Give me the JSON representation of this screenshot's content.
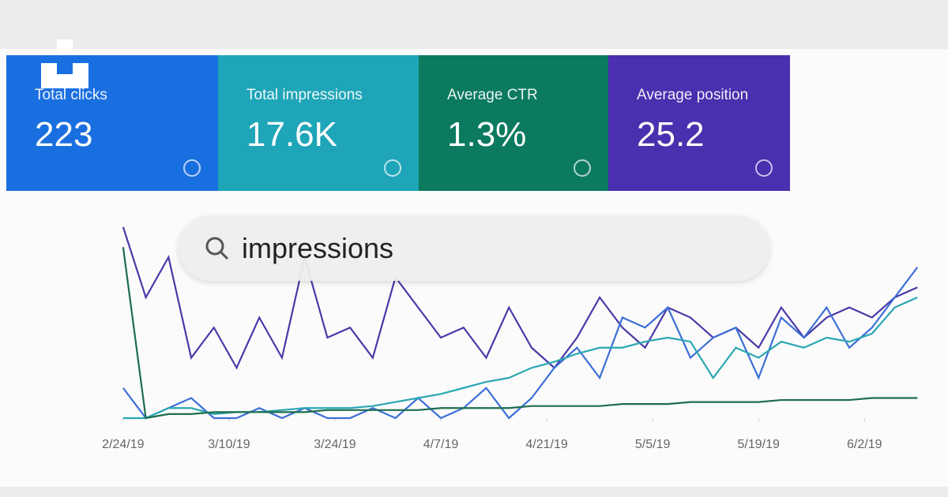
{
  "cards": [
    {
      "title": "Total clicks",
      "value": "223",
      "color": "#1a6fe0"
    },
    {
      "title": "Total impressions",
      "value": "17.6K",
      "color": "#1ea5b8"
    },
    {
      "title": "Average CTR",
      "value": "1.3%",
      "color": "#0b7a5e"
    },
    {
      "title": "Average position",
      "value": "25.2",
      "color": "#4a2fae"
    }
  ],
  "search": {
    "query": "impressions"
  },
  "chart_data": {
    "type": "line",
    "x": [
      0,
      3,
      6,
      9,
      12,
      15,
      18,
      21,
      24,
      27,
      30,
      33,
      36,
      39,
      42,
      45,
      48,
      51,
      54,
      57,
      60,
      63,
      66,
      69,
      72,
      75,
      78,
      81,
      84,
      87,
      90,
      93,
      96,
      99,
      102,
      105
    ],
    "xlim": [
      -5,
      108
    ],
    "xticks": [
      {
        "value": 0,
        "label": "2/24/19"
      },
      {
        "value": 14,
        "label": "3/10/19"
      },
      {
        "value": 28,
        "label": "3/24/19"
      },
      {
        "value": 42,
        "label": "4/7/19"
      },
      {
        "value": 56,
        "label": "4/21/19"
      },
      {
        "value": 70,
        "label": "5/5/19"
      },
      {
        "value": 84,
        "label": "5/19/19"
      },
      {
        "value": 98,
        "label": "6/2/19"
      }
    ],
    "ylim": [
      0,
      100
    ],
    "series": [
      {
        "name": "Average position",
        "color": "#4a3aa8",
        "values": [
          95,
          60,
          80,
          30,
          45,
          25,
          50,
          30,
          80,
          40,
          45,
          30,
          70,
          55,
          40,
          45,
          30,
          55,
          35,
          25,
          40,
          60,
          45,
          35,
          55,
          50,
          40,
          45,
          35,
          55,
          40,
          50,
          55,
          50,
          60,
          65
        ]
      },
      {
        "name": "Total clicks",
        "color": "#3c6fd6",
        "values": [
          15,
          0,
          5,
          10,
          0,
          0,
          5,
          0,
          5,
          0,
          0,
          5,
          0,
          10,
          0,
          5,
          15,
          0,
          10,
          25,
          35,
          20,
          50,
          45,
          55,
          30,
          40,
          45,
          20,
          50,
          40,
          55,
          35,
          45,
          60,
          75
        ]
      },
      {
        "name": "Total impressions",
        "color": "#2aa7b2",
        "values": [
          0,
          0,
          5,
          5,
          2,
          3,
          3,
          4,
          5,
          5,
          5,
          6,
          8,
          10,
          12,
          15,
          18,
          20,
          25,
          28,
          32,
          35,
          35,
          38,
          40,
          38,
          20,
          35,
          30,
          38,
          35,
          40,
          38,
          42,
          55,
          60
        ]
      },
      {
        "name": "Average CTR",
        "color": "#1d6e4c",
        "values": [
          85,
          0,
          2,
          2,
          3,
          3,
          3,
          3,
          3,
          4,
          4,
          4,
          4,
          4,
          5,
          5,
          5,
          5,
          6,
          6,
          6,
          6,
          7,
          7,
          7,
          8,
          8,
          8,
          8,
          9,
          9,
          9,
          9,
          10,
          10,
          10
        ]
      }
    ]
  }
}
